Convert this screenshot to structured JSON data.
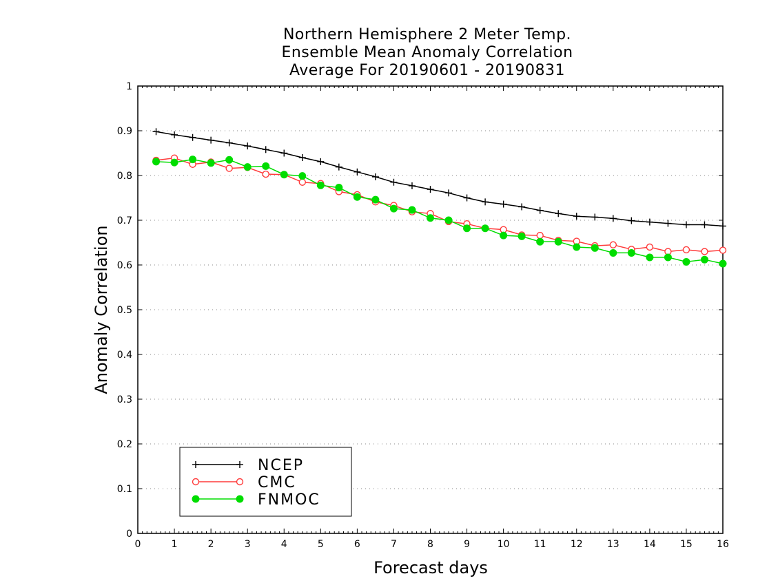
{
  "chart_data": {
    "type": "line",
    "title": [
      "Northern Hemisphere 2 Meter Temp.",
      "Ensemble Mean Anomaly Correlation",
      "Average For 20190601 - 20190831"
    ],
    "xlabel": "Forecast days",
    "ylabel": "Anomaly Correlation",
    "xlim": [
      0,
      16
    ],
    "ylim": [
      0,
      1
    ],
    "xticks": [
      0,
      1,
      2,
      3,
      4,
      5,
      6,
      7,
      8,
      9,
      10,
      11,
      12,
      13,
      14,
      15,
      16
    ],
    "yticks": [
      0,
      0.1,
      0.2,
      0.3,
      0.4,
      0.5,
      0.6,
      0.7,
      0.8,
      0.9,
      1
    ],
    "ytick_labels": [
      "0",
      "0.1",
      "0.2",
      "0.3",
      "0.4",
      "0.5",
      "0.6",
      "0.7",
      "0.8",
      "0.9",
      "1"
    ],
    "grid": "horizontal dotted",
    "legend_position": "bottom-left",
    "x": [
      0.5,
      1,
      1.5,
      2,
      2.5,
      3,
      3.5,
      4,
      4.5,
      5,
      5.5,
      6,
      6.5,
      7,
      7.5,
      8,
      8.5,
      9,
      9.5,
      10,
      10.5,
      11,
      11.5,
      12,
      12.5,
      13,
      13.5,
      14,
      14.5,
      15,
      15.5,
      16
    ],
    "series": [
      {
        "name": "NCEP",
        "color": "#000000",
        "marker": "plus",
        "values": [
          0.898,
          0.891,
          0.885,
          0.879,
          0.873,
          0.866,
          0.858,
          0.85,
          0.84,
          0.831,
          0.819,
          0.808,
          0.797,
          0.785,
          0.777,
          0.769,
          0.761,
          0.75,
          0.741,
          0.736,
          0.73,
          0.722,
          0.715,
          0.709,
          0.707,
          0.704,
          0.699,
          0.696,
          0.693,
          0.69,
          0.69,
          0.687
        ]
      },
      {
        "name": "CMC",
        "color": "#ff3b3b",
        "marker": "open-circle",
        "values": [
          0.834,
          0.839,
          0.825,
          0.83,
          0.816,
          0.818,
          0.803,
          0.802,
          0.785,
          0.782,
          0.764,
          0.757,
          0.741,
          0.733,
          0.719,
          0.715,
          0.697,
          0.692,
          0.682,
          0.679,
          0.667,
          0.666,
          0.655,
          0.653,
          0.643,
          0.645,
          0.635,
          0.64,
          0.63,
          0.634,
          0.63,
          0.633
        ]
      },
      {
        "name": "FNMOC",
        "color": "#00dd00",
        "marker": "filled-circle",
        "values": [
          0.831,
          0.829,
          0.836,
          0.828,
          0.835,
          0.819,
          0.821,
          0.802,
          0.799,
          0.778,
          0.773,
          0.752,
          0.746,
          0.726,
          0.723,
          0.705,
          0.7,
          0.682,
          0.682,
          0.666,
          0.664,
          0.652,
          0.652,
          0.64,
          0.638,
          0.627,
          0.627,
          0.617,
          0.617,
          0.607,
          0.612,
          0.603
        ]
      }
    ]
  }
}
